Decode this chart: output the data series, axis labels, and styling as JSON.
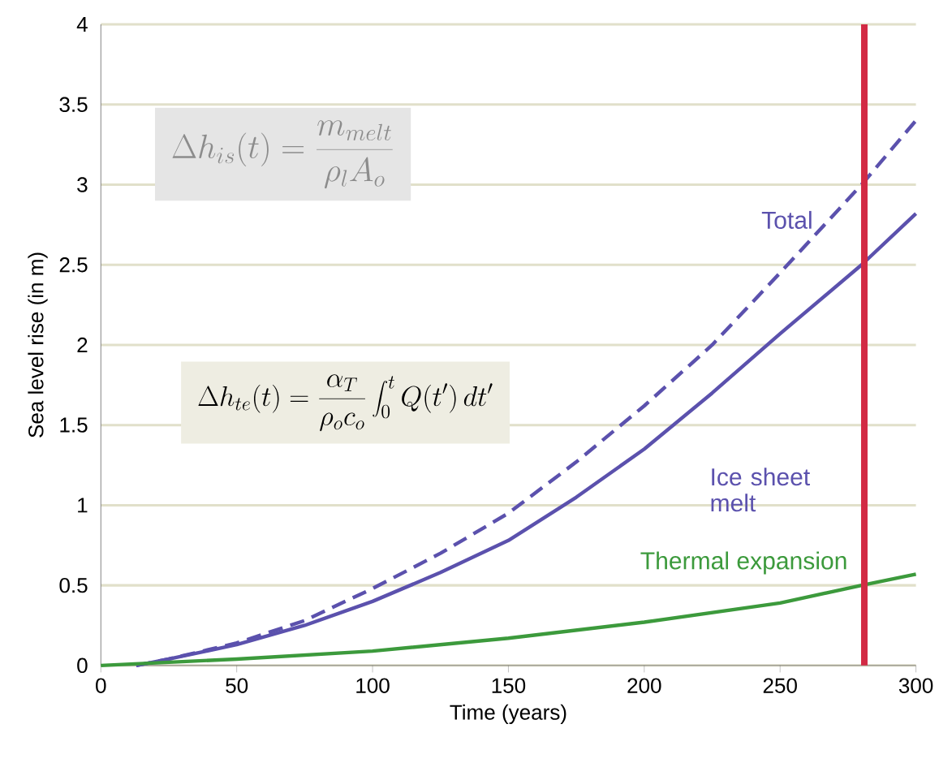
{
  "chart_data": {
    "type": "line",
    "xlabel": "Time (years)",
    "ylabel": "Sea level rise (in m)",
    "xlim": [
      0,
      300
    ],
    "ylim": [
      0,
      4
    ],
    "xticks": [
      0,
      50,
      100,
      150,
      200,
      250,
      300
    ],
    "yticks": [
      0,
      0.5,
      1,
      1.5,
      2,
      2.5,
      3,
      3.5,
      4
    ],
    "grid": "y",
    "legend": false,
    "marker": "none",
    "series": [
      {
        "name": "Total",
        "color": "#5b51ad",
        "line_style": "dashed",
        "x": [
          13,
          25,
          50,
          75,
          100,
          125,
          150,
          175,
          200,
          225,
          250,
          280,
          300
        ],
        "values": [
          0,
          0.04,
          0.14,
          0.28,
          0.48,
          0.7,
          0.95,
          1.27,
          1.62,
          2.0,
          2.45,
          3.0,
          3.4
        ]
      },
      {
        "name": "Ice sheet melt",
        "color": "#5b51ad",
        "line_style": "solid",
        "x": [
          13,
          25,
          50,
          75,
          100,
          125,
          150,
          175,
          200,
          225,
          250,
          280,
          300
        ],
        "values": [
          0,
          0.04,
          0.13,
          0.25,
          0.4,
          0.58,
          0.78,
          1.05,
          1.35,
          1.7,
          2.07,
          2.5,
          2.82
        ]
      },
      {
        "name": "Thermal expansion",
        "color": "#3c9a3c",
        "line_style": "solid",
        "x": [
          0,
          50,
          100,
          150,
          200,
          250,
          280,
          300
        ],
        "values": [
          0,
          0.04,
          0.09,
          0.17,
          0.27,
          0.39,
          0.5,
          0.57
        ]
      }
    ],
    "ref_lines": [
      {
        "axis": "x",
        "value": 281,
        "color": "#d22a44"
      }
    ],
    "annotations": [
      "\\Delta h_{is}(t)=\\frac{m_{melt}}{\\rho_l A_o}",
      "\\Delta h_{te}(t)=\\frac{\\alpha_T}{\\rho_o c_o}\\int_0^t Q(t')\\,dt'"
    ]
  }
}
